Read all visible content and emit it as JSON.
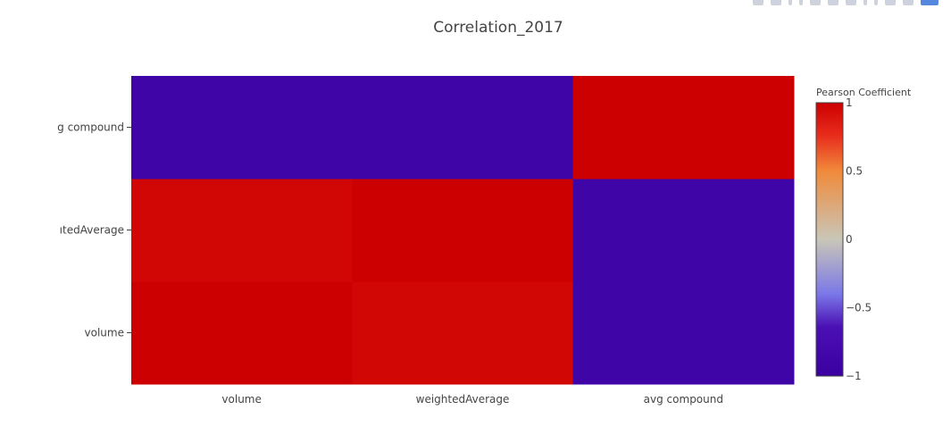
{
  "chart_data": {
    "type": "heatmap",
    "title": "Correlation_2017",
    "x_categories": [
      "volume",
      "weightedAverage",
      "avg compound"
    ],
    "y_categories": [
      "volume",
      "weightedAverage",
      "avg compound"
    ],
    "y_tick_display": [
      "volume",
      "ıtedAverage",
      "g compound"
    ],
    "z": [
      [
        1.0,
        0.96,
        -0.88
      ],
      [
        0.96,
        1.0,
        -0.88
      ],
      [
        -0.88,
        -0.88,
        1.0
      ]
    ],
    "zlim": [
      -1,
      1
    ],
    "colorbar": {
      "title": "Pearson Coefficient",
      "ticks": [
        1,
        0.5,
        0,
        -0.5,
        -1
      ],
      "tick_labels": [
        "1",
        "0.5",
        "0",
        "−0.5",
        "−1"
      ],
      "colorscale": [
        [
          0.0,
          "#3b00a0"
        ],
        [
          0.18,
          "#4b10b4"
        ],
        [
          0.3,
          "#7b78e8"
        ],
        [
          0.5,
          "#c9c6b8"
        ],
        [
          0.75,
          "#f08a3a"
        ],
        [
          0.88,
          "#e82c1c"
        ],
        [
          1.0,
          "#cc0000"
        ]
      ]
    }
  },
  "modebar": {
    "icons": [
      "camera-icon",
      "save-icon",
      "zoom-icon",
      "pan-icon",
      "zoom-in-icon",
      "zoom-out-icon",
      "autoscale-icon",
      "reset-axes-icon",
      "spike-icon",
      "hover-closest-icon",
      "hover-compare-icon",
      "plotly-logo-icon"
    ]
  }
}
